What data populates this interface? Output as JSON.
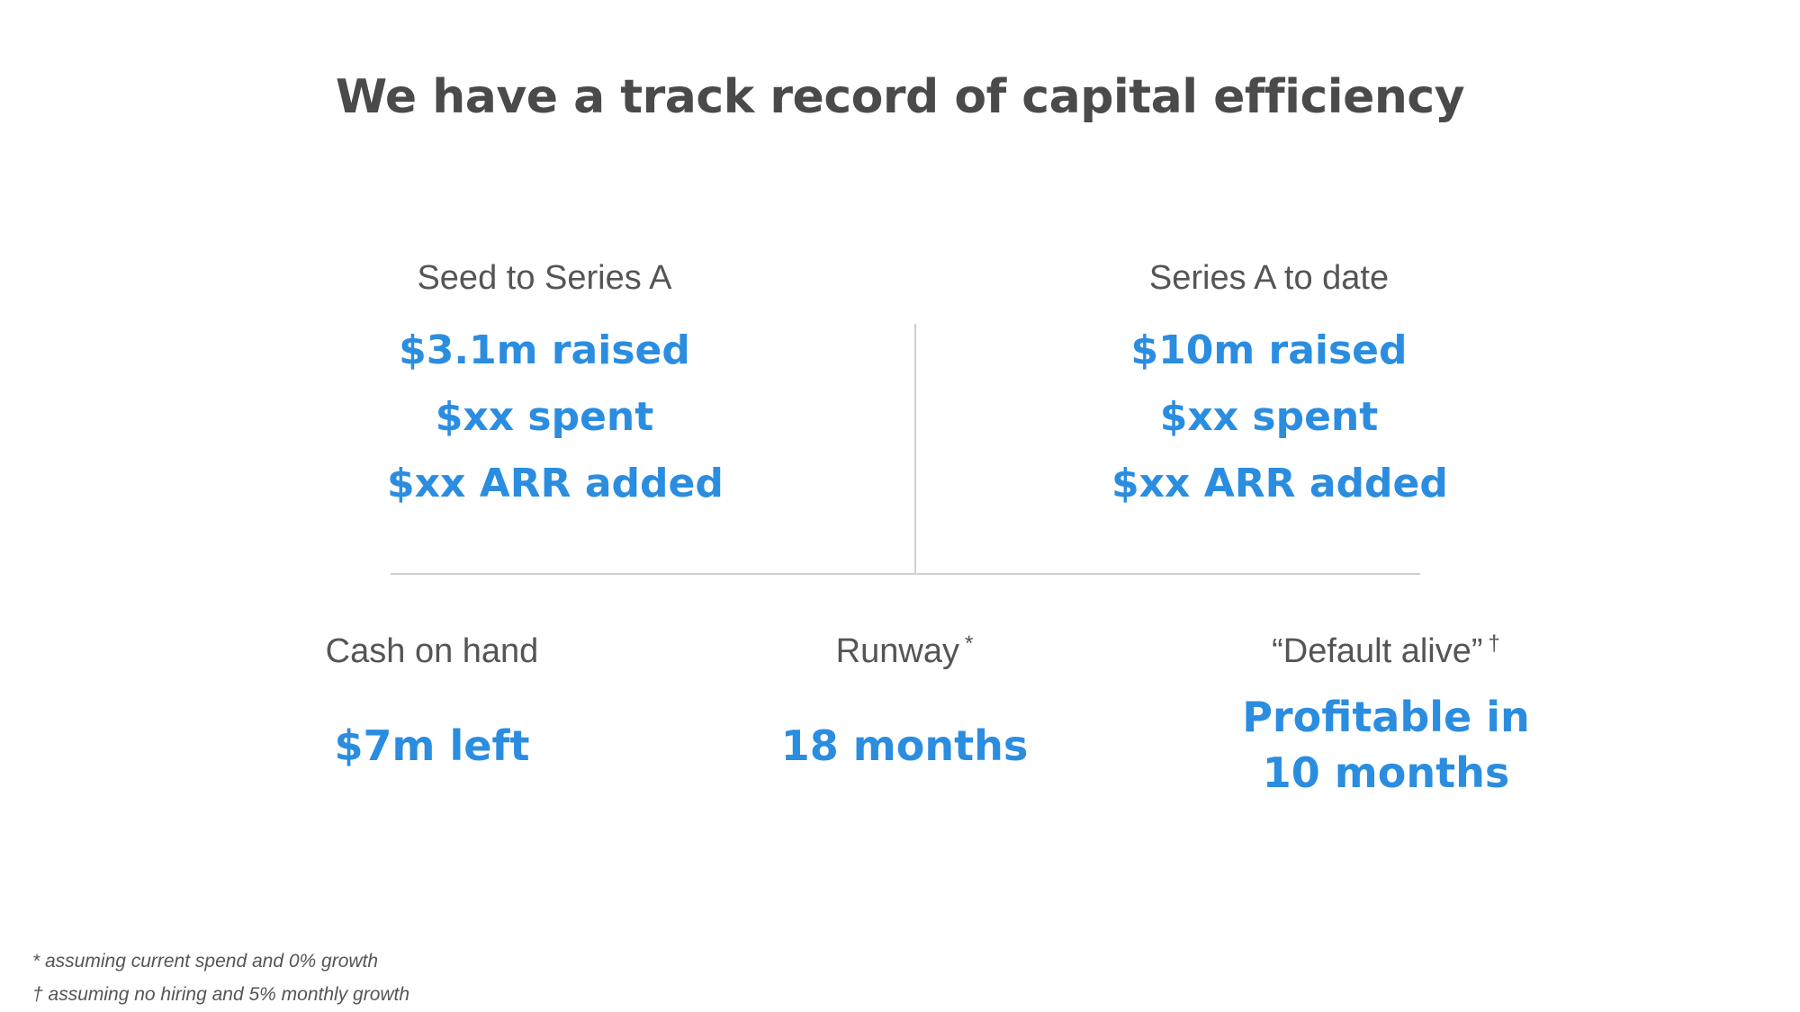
{
  "title": "We have a track record of capital efficiency",
  "left_column": {
    "label": "Seed to Series A",
    "stats": [
      "$3.1m raised",
      "$xx spent",
      "$xx ARR added"
    ]
  },
  "right_column": {
    "label": "Series A to date",
    "stats": [
      "$10m raised",
      "$xx spent",
      "$xx ARR added"
    ]
  },
  "metrics": {
    "cash": {
      "label": "Cash on hand",
      "value": "$7m left"
    },
    "runway": {
      "label": "Runway",
      "mark": "*",
      "value": "18 months"
    },
    "default_alive": {
      "label": "“Default alive”",
      "mark": "†",
      "value_line1": "Profitable in",
      "value_line2": "10 months"
    }
  },
  "footnotes": [
    "* assuming current spend and 0% growth",
    "† assuming no hiring and 5% monthly growth"
  ],
  "colors": {
    "accent": "#2b8de0",
    "title": "#4a4a4a",
    "label": "#555555",
    "divider": "#d0d0d0"
  }
}
